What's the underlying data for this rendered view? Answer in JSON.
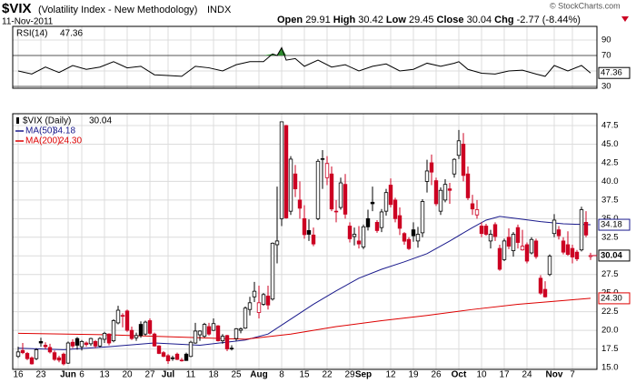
{
  "header": {
    "symbol": "$VIX",
    "description": "(Volatility Index - New Methodology)",
    "exchange": "INDX",
    "date": "11-Nov-2011",
    "open_label": "Open",
    "high_label": "High",
    "low_label": "Low",
    "close_label": "Close",
    "chg_label": "Chg",
    "chg": "-2.77",
    "chg_pct": "(-8.44%)",
    "copyright": "© StockCharts.com"
  },
  "chart_data": [
    {
      "type": "line",
      "title": "RSI(14)",
      "color": "#000000",
      "overbought_color": "#2e8b2e",
      "xlim": [
        -1.2,
        127.4
      ],
      "ylim": [
        27.6,
        107.6
      ],
      "yticks": [
        90,
        70,
        50,
        30
      ],
      "bands": [
        70,
        30
      ],
      "grid": true,
      "series": [
        {
          "name": "RSI(14)",
          "last_label": "47.36",
          "x": [
            0,
            3,
            6,
            9,
            12,
            15,
            18,
            21,
            24,
            27,
            30,
            33,
            36,
            39,
            42,
            45,
            48,
            51,
            54,
            56,
            57,
            58,
            59,
            61,
            63,
            66,
            69,
            72,
            75,
            78,
            81,
            84,
            87,
            90,
            93,
            96,
            97,
            99,
            102,
            105,
            108,
            111,
            114,
            116,
            118,
            121,
            124,
            126
          ],
          "values": [
            50,
            46,
            55,
            48,
            57,
            52,
            55,
            62,
            54,
            56,
            45,
            44,
            43,
            56,
            54,
            50,
            58,
            62,
            62,
            72,
            70,
            80,
            64,
            66,
            56,
            64,
            55,
            58,
            50,
            56,
            59,
            50,
            52,
            60,
            56,
            60,
            62,
            52,
            47,
            46,
            50,
            51,
            46,
            43,
            57,
            50,
            57,
            47.36
          ]
        }
      ]
    },
    {
      "type": "candlestick",
      "name": "$VIX (Daily)",
      "last_label": "30.04",
      "up_color": "#000000",
      "down_color": "#cc0022",
      "xlim": [
        -1.2,
        127.4
      ],
      "ylim": [
        14.76,
        49.09
      ],
      "grid": true,
      "yticks": [
        {
          "value": 47.5,
          "label": "47.5"
        },
        {
          "value": 45,
          "label": "45.0"
        },
        {
          "value": 42.5,
          "label": "42.5"
        },
        {
          "value": 40,
          "label": "40.0"
        },
        {
          "value": 37.5,
          "label": "37.5"
        },
        {
          "value": 35,
          "label": "35.0"
        },
        {
          "value": 32.5,
          "label": "32.5"
        },
        {
          "value": 30,
          "label": "30.0"
        },
        {
          "value": 27.5,
          "label": "27.5"
        },
        {
          "value": 25,
          "label": "25.0"
        },
        {
          "value": 22.5,
          "label": "22.5"
        },
        {
          "value": 20,
          "label": "20.0"
        },
        {
          "value": 17.5,
          "label": "17.5"
        },
        {
          "value": 15,
          "label": "15.0"
        }
      ],
      "xticks": [
        {
          "value": 0,
          "label": "16"
        },
        {
          "value": 5,
          "label": "23"
        },
        {
          "value": 11,
          "label": "Jun"
        },
        {
          "value": 14,
          "label": "6"
        },
        {
          "value": 19,
          "label": "13"
        },
        {
          "value": 24,
          "label": "20"
        },
        {
          "value": 29,
          "label": "27"
        },
        {
          "value": 33,
          "label": "Jul"
        },
        {
          "value": 38,
          "label": "11"
        },
        {
          "value": 43,
          "label": "18"
        },
        {
          "value": 48,
          "label": "25"
        },
        {
          "value": 53,
          "label": "Aug"
        },
        {
          "value": 58,
          "label": "8"
        },
        {
          "value": 63,
          "label": "15"
        },
        {
          "value": 68,
          "label": "22"
        },
        {
          "value": 73,
          "label": "29"
        },
        {
          "value": 76,
          "label": "Sep"
        },
        {
          "value": 82,
          "label": "12"
        },
        {
          "value": 87,
          "label": "19"
        },
        {
          "value": 92,
          "label": "26"
        },
        {
          "value": 97,
          "label": "Oct"
        },
        {
          "value": 102,
          "label": "10"
        },
        {
          "value": 107,
          "label": "17"
        },
        {
          "value": 112,
          "label": "24"
        },
        {
          "value": 118,
          "label": "Nov"
        },
        {
          "value": 122,
          "label": "7"
        }
      ],
      "open": [
        16.5,
        17.3,
        16.9,
        16.3,
        16.2,
        18.5,
        18.0,
        17.7,
        17.0,
        16.3,
        16.8,
        15.6,
        18.4,
        18.9,
        17.8,
        18.3,
        18.2,
        18.5,
        17.9,
        18.8,
        19.5,
        18.6,
        21.0,
        22.0,
        22.6,
        20.0,
        19.0,
        20.8,
        19.5,
        21.3,
        19.5,
        17.9,
        17.0,
        16.6,
        16.2,
        16.8,
        16.0,
        16.8,
        16.5,
        18.3,
        19.4,
        19.2,
        20.5,
        20.0,
        20.6,
        18.6,
        19.3,
        17.6,
        18.9,
        20.0,
        20.3,
        22.8,
        24.5,
        22.4,
        23.5,
        24.6,
        24.2,
        31.5,
        35.0,
        47.5,
        36.0,
        41.0,
        37.5,
        35.0,
        33.4,
        32.8,
        35.0,
        43.0,
        40.5,
        41.0,
        36.0,
        36.5,
        39.6,
        34.0,
        32.6,
        32.0,
        31.2,
        35.0,
        37.2,
        34.5,
        33.8,
        36.0,
        39.5,
        37.5,
        35.4,
        33.0,
        32.2,
        33.5,
        32.0,
        33.1,
        40.0,
        42.5,
        40.1,
        36.0,
        37.5,
        39.0,
        41.0,
        43.5,
        45.0,
        41.0,
        37.0,
        35.5,
        34.0,
        34.0,
        32.0,
        34.2,
        31.0,
        29.5,
        32.5,
        30.7,
        33.8,
        30.8,
        31.5,
        30.4,
        32.0,
        27.0,
        25.5,
        27.5,
        33.0,
        33.5,
        32.0,
        31.5,
        31.0,
        30.5,
        30.8,
        34.5,
        29.91
      ],
      "high": [
        17.8,
        18.3,
        17.1,
        16.5,
        17.6,
        19.0,
        18.4,
        18.2,
        17.3,
        16.6,
        17.0,
        18.5,
        18.8,
        19.1,
        18.7,
        18.5,
        19.0,
        18.7,
        19.1,
        19.8,
        19.6,
        21.5,
        23.3,
        22.3,
        22.8,
        20.5,
        19.7,
        21.2,
        21.3,
        21.6,
        19.7,
        18.0,
        17.2,
        16.8,
        16.6,
        17.0,
        16.3,
        17.0,
        18.6,
        21.0,
        20.0,
        21.0,
        21.0,
        21.6,
        20.7,
        19.5,
        19.4,
        18.0,
        20.3,
        20.4,
        23.2,
        24.5,
        26.5,
        26.0,
        25.0,
        26.0,
        31.8,
        39.3,
        48.0,
        47.6,
        43.4,
        42.2,
        40.0,
        36.8,
        34.9,
        33.8,
        43.0,
        44.2,
        43.4,
        42.0,
        37.5,
        40.5,
        41.0,
        34.5,
        33.8,
        34.0,
        34.2,
        36.2,
        39.3,
        34.8,
        36.3,
        39.0,
        40.4,
        37.8,
        36.5,
        33.2,
        32.5,
        34.5,
        33.9,
        37.6,
        42.9,
        43.6,
        40.5,
        39.2,
        40.3,
        39.8,
        43.1,
        46.9,
        46.5,
        42.0,
        38.2,
        37.5,
        34.5,
        34.3,
        33.5,
        34.5,
        31.5,
        32.3,
        33.7,
        33.2,
        34.2,
        33.5,
        31.8,
        32.5,
        32.3,
        27.4,
        26.6,
        30.2,
        35.6,
        34.0,
        32.5,
        33.3,
        31.5,
        30.8,
        36.6,
        36.0,
        30.42
      ],
      "low": [
        16.3,
        16.8,
        16.0,
        15.4,
        16.0,
        17.8,
        17.5,
        16.9,
        15.9,
        15.7,
        15.3,
        15.5,
        17.6,
        17.4,
        17.3,
        17.8,
        17.9,
        17.6,
        17.7,
        18.3,
        18.0,
        18.4,
        20.8,
        20.4,
        19.8,
        18.7,
        18.6,
        19.0,
        19.3,
        19.4,
        17.8,
        16.8,
        16.4,
        15.5,
        15.9,
        16.0,
        15.8,
        15.9,
        16.4,
        18.2,
        18.6,
        19.0,
        19.3,
        19.9,
        18.5,
        18.2,
        17.2,
        17.3,
        18.6,
        19.6,
        20.2,
        22.0,
        23.8,
        21.6,
        23.3,
        22.8,
        24.0,
        29.0,
        34.0,
        35.0,
        35.5,
        37.9,
        35.0,
        32.3,
        32.0,
        31.3,
        34.8,
        39.0,
        39.5,
        36.0,
        34.5,
        36.2,
        35.0,
        31.8,
        31.4,
        31.0,
        30.9,
        33.4,
        36.0,
        33.1,
        33.2,
        35.4,
        36.5,
        34.5,
        32.8,
        31.5,
        30.8,
        31.9,
        31.1,
        32.5,
        38.5,
        39.5,
        36.7,
        35.5,
        37.2,
        37.0,
        40.5,
        43.0,
        40.0,
        37.5,
        35.5,
        35.0,
        32.5,
        32.7,
        31.0,
        32.0,
        28.0,
        29.3,
        30.9,
        29.9,
        31.0,
        30.7,
        29.0,
        30.2,
        29.6,
        24.8,
        24.4,
        27.3,
        32.5,
        32.2,
        30.2,
        30.0,
        29.0,
        29.3,
        30.6,
        32.5,
        29.45
      ],
      "close": [
        17.1,
        17.0,
        16.2,
        15.5,
        17.4,
        18.3,
        17.8,
        17.1,
        16.1,
        16.0,
        15.5,
        18.3,
        17.9,
        18.0,
        18.5,
        18.1,
        18.9,
        17.9,
        18.9,
        19.6,
        18.3,
        21.3,
        22.7,
        21.9,
        20.0,
        18.9,
        19.3,
        19.3,
        21.1,
        19.6,
        17.9,
        16.9,
        16.5,
        15.9,
        16.3,
        16.1,
        15.95,
        15.95,
        18.4,
        19.9,
        19.9,
        20.8,
        19.5,
        20.9,
        18.6,
        19.2,
        17.5,
        17.5,
        20.2,
        20.2,
        22.98,
        23.7,
        25.25,
        23.7,
        24.8,
        23.4,
        31.7,
        32.0,
        48.0,
        35.1,
        42.99,
        39.0,
        36.4,
        32.85,
        32.9,
        31.6,
        42.7,
        43.05,
        42.4,
        36.3,
        35.9,
        39.8,
        35.6,
        32.3,
        32.9,
        31.6,
        33.9,
        33.9,
        37.0,
        33.4,
        35.9,
        38.5,
        36.9,
        35.0,
        33.7,
        31.97,
        30.98,
        32.7,
        32.9,
        37.3,
        41.4,
        41.25,
        37.0,
        38.8,
        39.6,
        38.8,
        42.96,
        45.45,
        40.8,
        37.8,
        36.3,
        36.2,
        33.0,
        32.9,
        32.9,
        32.6,
        28.2,
        32.0,
        31.3,
        32.9,
        31.8,
        31.3,
        29.3,
        32.2,
        29.9,
        25.0,
        24.5,
        29.96,
        34.8,
        32.7,
        30.5,
        30.2,
        29.85,
        29.6,
        36.2,
        32.8,
        30.04
      ],
      "series": [
        {
          "name": "MA(50)",
          "color": "#1a1a8c",
          "last_label": "34.18",
          "x": [
            0,
            10,
            20,
            30,
            40,
            50,
            55,
            60,
            65,
            70,
            75,
            80,
            85,
            90,
            95,
            100,
            103,
            106,
            110,
            115,
            120,
            126
          ],
          "values": [
            17.6,
            17.4,
            17.8,
            18.3,
            18.0,
            18.7,
            19.5,
            21.5,
            23.5,
            25.3,
            27.0,
            28.2,
            29.2,
            30.3,
            32.0,
            33.8,
            34.8,
            35.3,
            35.0,
            34.6,
            34.3,
            34.18
          ]
        },
        {
          "name": "MA(200)",
          "color": "#dd0000",
          "last_label": "24.30",
          "x": [
            0,
            20,
            40,
            50,
            60,
            70,
            80,
            90,
            100,
            110,
            120,
            126
          ],
          "values": [
            19.6,
            19.4,
            19.0,
            18.8,
            19.5,
            20.5,
            21.3,
            22.0,
            22.8,
            23.5,
            24.0,
            24.3
          ]
        }
      ]
    }
  ]
}
